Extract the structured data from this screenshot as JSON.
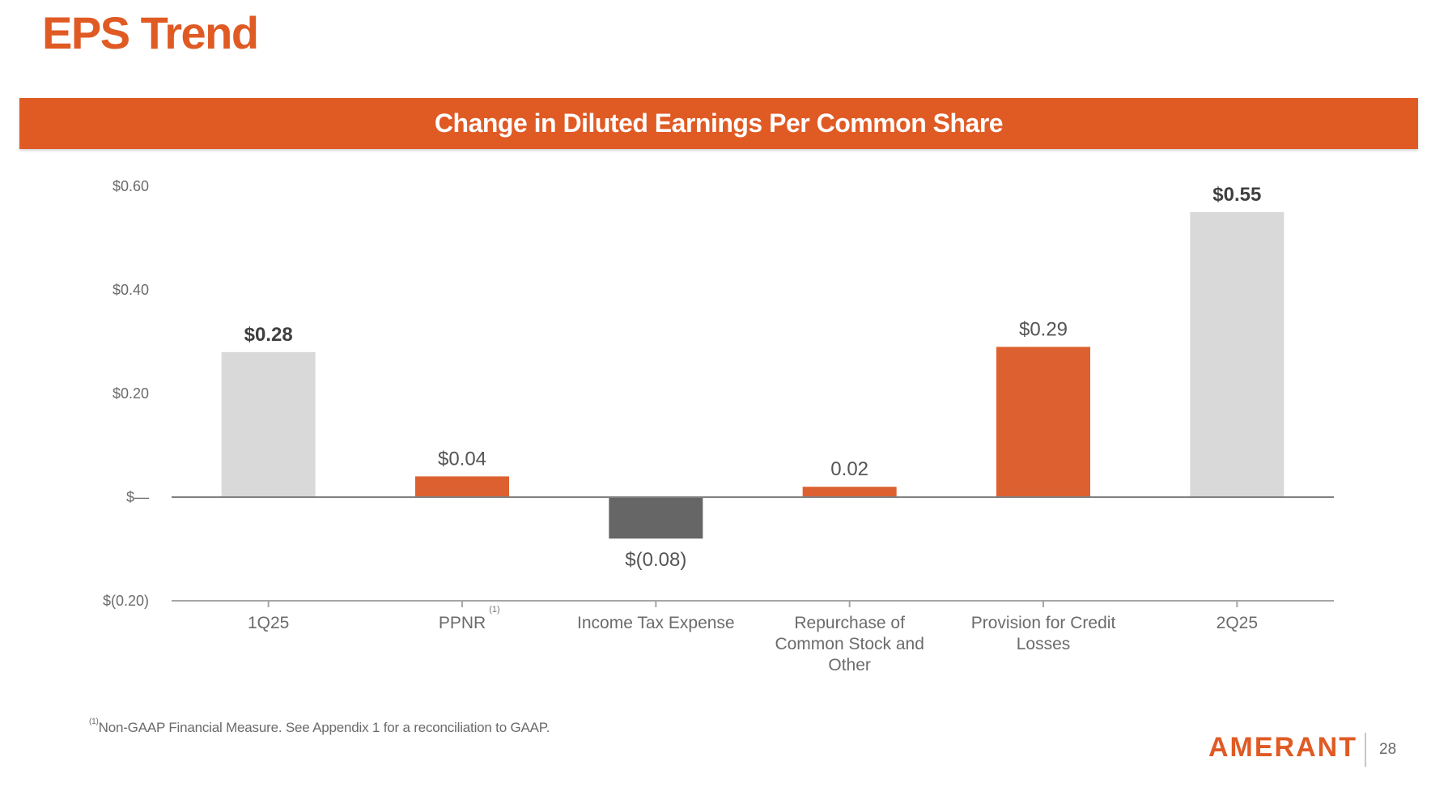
{
  "title": "EPS Trend",
  "banner": "Change in Diluted Earnings Per Common Share",
  "footnote": {
    "marker": "(1)",
    "text": "Non-GAAP Financial Measure. See Appendix 1 for a reconciliation to GAAP."
  },
  "logo": "AMERANT",
  "page_number": "28",
  "colors": {
    "accent": "#e05a24",
    "total_bar": "#d9d9d9",
    "increase_bar": "#dd6130",
    "decrease_bar": "#666666",
    "axis": "#a6a6a6"
  },
  "chart_data": {
    "type": "bar",
    "subtype": "waterfall",
    "title": "Change in Diluted Earnings Per Common Share",
    "categories": [
      "1Q25",
      "PPNR",
      "Income Tax Expense",
      "Repurchase of Common Stock and Other",
      "Provision for Credit Losses",
      "2Q25"
    ],
    "category_lines": [
      [
        "1Q25"
      ],
      [
        "PPNR"
      ],
      [
        "Income Tax Expense"
      ],
      [
        "Repurchase of",
        "Common Stock and",
        "Other"
      ],
      [
        "Provision for Credit",
        "Losses"
      ],
      [
        "2Q25"
      ]
    ],
    "category_superscripts": [
      "",
      "(1)",
      "",
      "",
      "",
      ""
    ],
    "values": [
      0.28,
      0.04,
      -0.08,
      0.02,
      0.29,
      0.55
    ],
    "bar_kinds": [
      "total",
      "change",
      "change-negative",
      "change",
      "change",
      "total"
    ],
    "data_labels": [
      "$0.28",
      "$0.04",
      "$(0.08)",
      "0.02",
      "$0.29",
      "$0.55"
    ],
    "data_label_bold": [
      true,
      false,
      false,
      false,
      false,
      true
    ],
    "ylim": [
      -0.2,
      0.6
    ],
    "yticks": [
      0.6,
      0.4,
      0.2,
      0.0,
      -0.2
    ],
    "ytick_labels": [
      "$0.60",
      "$0.40",
      "$0.20",
      "$—",
      "$(0.20)"
    ],
    "grid": false,
    "legend": "none"
  }
}
